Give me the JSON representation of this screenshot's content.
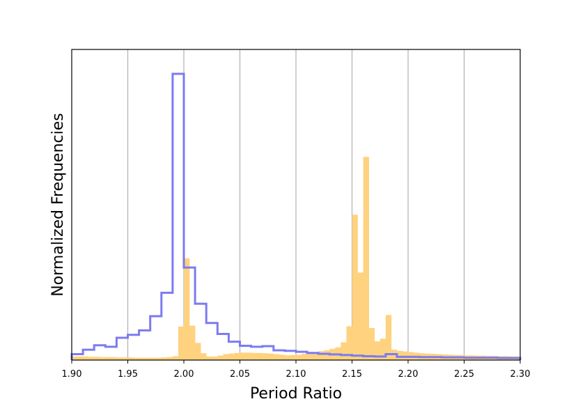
{
  "chart_data": {
    "type": "histogram",
    "xlabel": "Period Ratio",
    "ylabel": "Normalized Frequencies",
    "xlim": [
      1.9,
      2.3
    ],
    "ylim": [
      0,
      1.0
    ],
    "y_ticks_shown": false,
    "grid": "vertical",
    "bin_width": 0.005,
    "x_ticks": [
      "1.90",
      "1.95",
      "2.00",
      "2.05",
      "2.10",
      "2.15",
      "2.20",
      "2.25",
      "2.30"
    ],
    "x_tick_values": [
      1.9,
      1.95,
      2.0,
      2.05,
      2.1,
      2.15,
      2.2,
      2.25,
      2.3
    ],
    "series": [
      {
        "style": "filled",
        "color": "#ffd27f",
        "opacity": 1.0,
        "bin_starts": [
          1.9,
          1.905,
          1.91,
          1.915,
          1.92,
          1.925,
          1.93,
          1.935,
          1.94,
          1.945,
          1.95,
          1.955,
          1.96,
          1.965,
          1.97,
          1.975,
          1.98,
          1.985,
          1.99,
          1.995,
          2.0,
          2.005,
          2.01,
          2.015,
          2.02,
          2.025,
          2.03,
          2.035,
          2.04,
          2.045,
          2.05,
          2.055,
          2.06,
          2.065,
          2.07,
          2.075,
          2.08,
          2.085,
          2.09,
          2.095,
          2.1,
          2.105,
          2.11,
          2.115,
          2.12,
          2.125,
          2.13,
          2.135,
          2.14,
          2.145,
          2.15,
          2.155,
          2.16,
          2.165,
          2.17,
          2.175,
          2.18,
          2.185,
          2.19,
          2.195,
          2.2,
          2.205,
          2.21,
          2.215,
          2.22,
          2.225,
          2.23,
          2.235,
          2.24,
          2.245,
          2.25,
          2.255,
          2.26,
          2.265,
          2.27,
          2.275,
          2.28,
          2.285,
          2.29,
          2.295
        ],
        "values": [
          0.012,
          0.012,
          0.012,
          0.011,
          0.011,
          0.01,
          0.01,
          0.01,
          0.009,
          0.009,
          0.009,
          0.008,
          0.008,
          0.008,
          0.008,
          0.008,
          0.009,
          0.01,
          0.013,
          0.113,
          0.343,
          0.116,
          0.058,
          0.023,
          0.012,
          0.012,
          0.015,
          0.02,
          0.022,
          0.024,
          0.025,
          0.025,
          0.024,
          0.024,
          0.023,
          0.022,
          0.02,
          0.018,
          0.016,
          0.017,
          0.018,
          0.021,
          0.024,
          0.027,
          0.03,
          0.033,
          0.038,
          0.043,
          0.06,
          0.114,
          0.49,
          0.295,
          0.685,
          0.108,
          0.063,
          0.072,
          0.152,
          0.035,
          0.031,
          0.029,
          0.027,
          0.025,
          0.023,
          0.022,
          0.021,
          0.02,
          0.019,
          0.018,
          0.017,
          0.017,
          0.016,
          0.016,
          0.015,
          0.015,
          0.014,
          0.014,
          0.013,
          0.013,
          0.012,
          0.012
        ]
      },
      {
        "style": "step",
        "color": "#7b7bf1",
        "opacity": 1.0,
        "bin_starts": [
          1.9,
          1.91,
          1.92,
          1.93,
          1.94,
          1.95,
          1.96,
          1.97,
          1.98,
          1.99,
          2.0,
          2.01,
          2.02,
          2.03,
          2.04,
          2.05,
          2.06,
          2.07,
          2.08,
          2.09,
          2.1,
          2.11,
          2.12,
          2.13,
          2.14,
          2.15,
          2.16,
          2.17,
          2.18,
          2.19,
          2.2,
          2.21,
          2.22,
          2.23,
          2.24,
          2.25,
          2.26,
          2.27,
          2.28,
          2.29
        ],
        "values": [
          0.02,
          0.035,
          0.05,
          0.045,
          0.075,
          0.085,
          0.1,
          0.148,
          0.227,
          0.965,
          0.312,
          0.19,
          0.125,
          0.088,
          0.062,
          0.048,
          0.045,
          0.047,
          0.033,
          0.031,
          0.028,
          0.024,
          0.021,
          0.019,
          0.017,
          0.015,
          0.013,
          0.012,
          0.02,
          0.011,
          0.011,
          0.01,
          0.01,
          0.009,
          0.009,
          0.008,
          0.008,
          0.008,
          0.007,
          0.007
        ]
      }
    ]
  }
}
